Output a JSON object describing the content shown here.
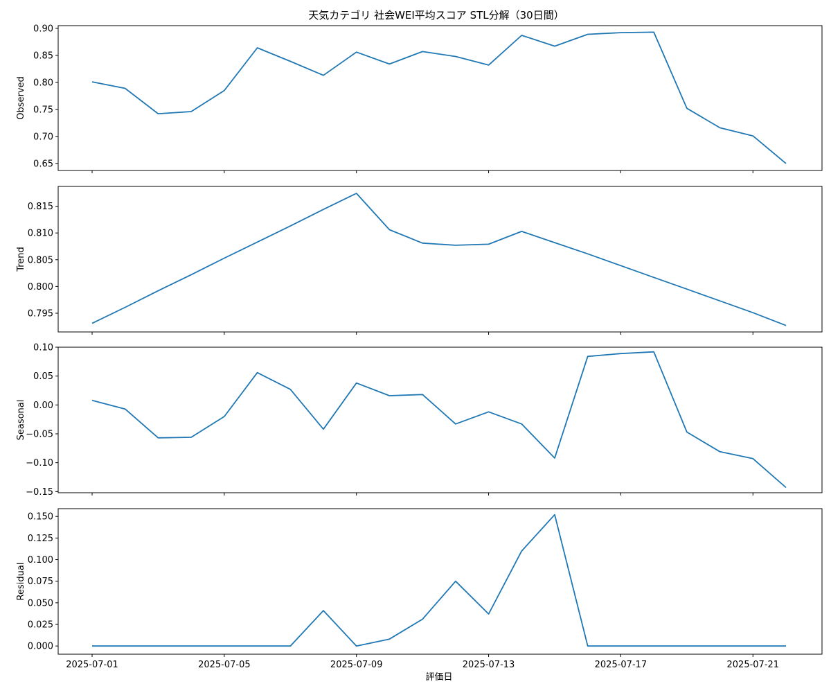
{
  "chart_data": {
    "type": "line",
    "title": "天気カテゴリ 社会WEI平均スコア STL分解（30日間）",
    "xlabel": "評価日",
    "x": [
      "2025-07-01",
      "2025-07-02",
      "2025-07-03",
      "2025-07-04",
      "2025-07-05",
      "2025-07-06",
      "2025-07-07",
      "2025-07-08",
      "2025-07-09",
      "2025-07-10",
      "2025-07-11",
      "2025-07-12",
      "2025-07-13",
      "2025-07-14",
      "2025-07-15",
      "2025-07-16",
      "2025-07-17",
      "2025-07-18",
      "2025-07-19",
      "2025-07-20",
      "2025-07-21",
      "2025-07-22"
    ],
    "x_ticks": [
      "2025-07-01",
      "2025-07-05",
      "2025-07-09",
      "2025-07-13",
      "2025-07-17",
      "2025-07-21"
    ],
    "color": "#1f77b4",
    "grid": false,
    "panels": [
      {
        "name": "Observed",
        "ylabel": "Observed",
        "ylim": [
          0.637,
          0.905
        ],
        "y_ticks": [
          "0.65",
          "0.70",
          "0.75",
          "0.80",
          "0.85",
          "0.90"
        ],
        "values": [
          0.801,
          0.789,
          0.742,
          0.746,
          0.785,
          0.864,
          0.839,
          0.813,
          0.856,
          0.834,
          0.857,
          0.848,
          0.832,
          0.887,
          0.867,
          0.889,
          0.892,
          0.893,
          0.752,
          0.716,
          0.701,
          0.65
        ]
      },
      {
        "name": "Trend",
        "ylabel": "Trend",
        "ylim": [
          0.7915,
          0.8187
        ],
        "y_ticks": [
          "0.795",
          "0.800",
          "0.805",
          "0.810",
          "0.815"
        ],
        "values": [
          0.7931,
          0.7961,
          0.7992,
          0.8022,
          0.8053,
          0.8083,
          0.8113,
          0.8144,
          0.8174,
          0.8106,
          0.8081,
          0.8077,
          0.8079,
          0.8103,
          0.8082,
          0.8061,
          0.8039,
          0.8017,
          0.7995,
          0.7973,
          0.7951,
          0.7927
        ]
      },
      {
        "name": "Seasonal",
        "ylabel": "Seasonal",
        "ylim": [
          -0.152,
          0.1
        ],
        "y_ticks": [
          "−0.15",
          "−0.10",
          "−0.05",
          "0.00",
          "0.05",
          "0.10"
        ],
        "values": [
          0.008,
          -0.007,
          -0.057,
          -0.056,
          -0.02,
          0.056,
          0.027,
          -0.042,
          0.038,
          0.016,
          0.018,
          -0.033,
          -0.012,
          -0.033,
          -0.092,
          0.084,
          0.089,
          0.092,
          -0.047,
          -0.081,
          -0.093,
          -0.143
        ]
      },
      {
        "name": "Residual",
        "ylabel": "Residual",
        "ylim": [
          -0.0095,
          0.159
        ],
        "y_ticks": [
          "0.000",
          "0.025",
          "0.050",
          "0.075",
          "0.100",
          "0.125",
          "0.150"
        ],
        "values": [
          0,
          0,
          0,
          0,
          0,
          0,
          0,
          0.041,
          0,
          0.008,
          0.031,
          0.075,
          0.037,
          0.11,
          0.152,
          0,
          0,
          0,
          0,
          0,
          0,
          0
        ]
      }
    ]
  }
}
